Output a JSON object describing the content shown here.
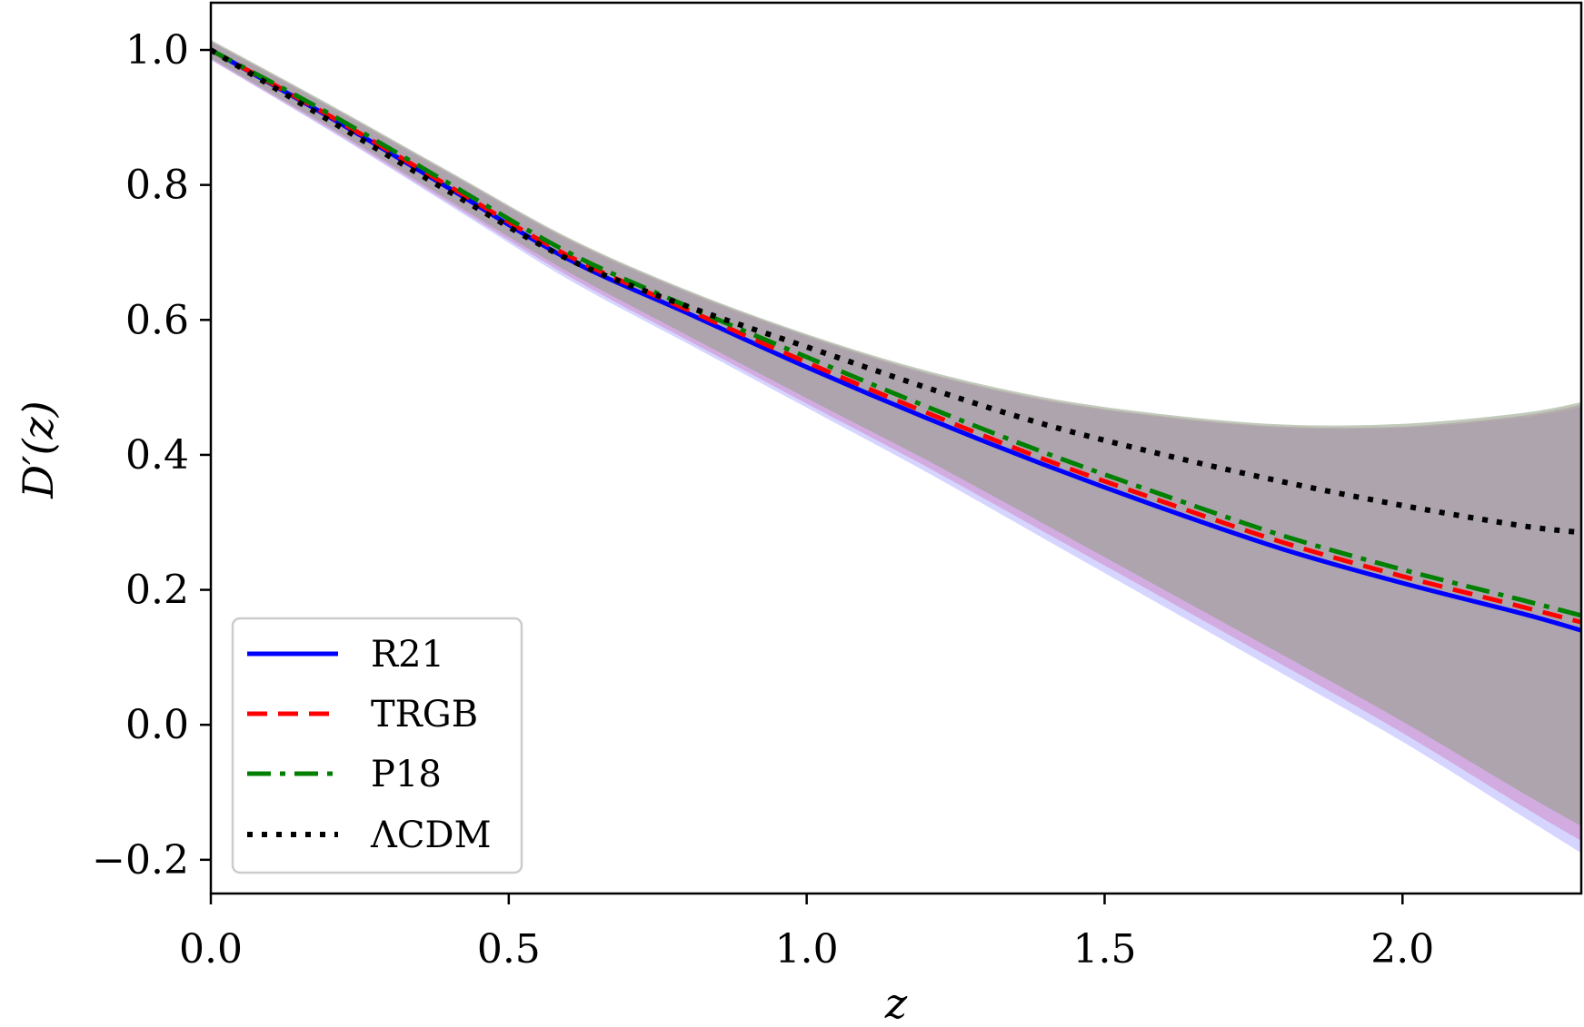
{
  "chart_data": {
    "type": "line",
    "xlabel": "z",
    "ylabel": "D′(z)",
    "xlim": [
      0.0,
      2.3
    ],
    "ylim": [
      -0.25,
      1.07
    ],
    "xticks": [
      0.0,
      0.5,
      1.0,
      1.5,
      2.0
    ],
    "xtick_labels": [
      "0.0",
      "0.5",
      "1.0",
      "1.5",
      "2.0"
    ],
    "yticks": [
      -0.2,
      0.0,
      0.2,
      0.4,
      0.6,
      0.8,
      1.0
    ],
    "ytick_labels": [
      "−0.2",
      "0.0",
      "0.2",
      "0.4",
      "0.6",
      "0.8",
      "1.0"
    ],
    "grid": false,
    "legend_position": "lower-left",
    "x": [
      0.0,
      0.2,
      0.4,
      0.6,
      0.8,
      1.0,
      1.2,
      1.4,
      1.6,
      1.8,
      2.0,
      2.2,
      2.3
    ],
    "series": [
      {
        "name": "R21",
        "color": "#0000ff",
        "style": "solid",
        "values": [
          1.0,
          0.9,
          0.795,
          0.69,
          0.61,
          0.53,
          0.455,
          0.385,
          0.32,
          0.26,
          0.21,
          0.165,
          0.14
        ]
      },
      {
        "name": "TRGB",
        "color": "#ff0000",
        "style": "dashed",
        "values": [
          1.0,
          0.902,
          0.798,
          0.695,
          0.615,
          0.537,
          0.463,
          0.393,
          0.33,
          0.27,
          0.22,
          0.175,
          0.152
        ]
      },
      {
        "name": "P18",
        "color": "#008000",
        "style": "dashdot",
        "values": [
          1.0,
          0.905,
          0.802,
          0.7,
          0.62,
          0.545,
          0.472,
          0.403,
          0.34,
          0.28,
          0.23,
          0.185,
          0.162
        ]
      },
      {
        "name": "ΛCDM",
        "color": "#000000",
        "style": "dotted",
        "values": [
          1.0,
          0.895,
          0.79,
          0.69,
          0.62,
          0.56,
          0.5,
          0.445,
          0.4,
          0.36,
          0.325,
          0.295,
          0.285
        ]
      }
    ],
    "bands": [
      {
        "color": "#b3b3ff",
        "opacity": 0.55,
        "upper": [
          1.012,
          0.915,
          0.816,
          0.718,
          0.64,
          0.575,
          0.52,
          0.48,
          0.455,
          0.44,
          0.44,
          0.455,
          0.47
        ],
        "lower": [
          0.985,
          0.88,
          0.77,
          0.66,
          0.565,
          0.47,
          0.375,
          0.275,
          0.175,
          0.075,
          -0.025,
          -0.135,
          -0.19
        ]
      },
      {
        "color": "#d088c8",
        "opacity": 0.55,
        "upper": [
          1.013,
          0.917,
          0.818,
          0.72,
          0.642,
          0.577,
          0.522,
          0.482,
          0.457,
          0.442,
          0.442,
          0.458,
          0.474
        ],
        "lower": [
          0.986,
          0.882,
          0.773,
          0.665,
          0.57,
          0.476,
          0.383,
          0.285,
          0.187,
          0.088,
          -0.012,
          -0.12,
          -0.172
        ]
      },
      {
        "color": "#8e9e84",
        "opacity": 0.55,
        "upper": [
          1.015,
          0.919,
          0.82,
          0.722,
          0.644,
          0.579,
          0.525,
          0.485,
          0.46,
          0.445,
          0.446,
          0.462,
          0.478
        ],
        "lower": [
          0.988,
          0.885,
          0.777,
          0.671,
          0.577,
          0.484,
          0.393,
          0.297,
          0.2,
          0.103,
          0.005,
          -0.1,
          -0.15
        ]
      }
    ]
  }
}
